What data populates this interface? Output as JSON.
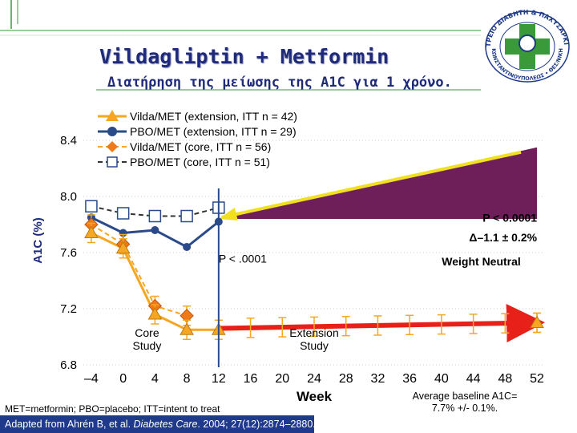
{
  "slide": {
    "title": "Vildagliptin + Metformin",
    "subtitle": "Διατήρηση της μείωσης της A1C για 1 χρόνο.",
    "footnote": "MET=metformin; PBO=placebo; ITT=intent to treat",
    "citation_prefix": "Adapted from Ahrén B, et al. ",
    "citation_journal": "Diabetes Care",
    "citation_suffix": ". 2004; 27(12):2874–2880.",
    "baseline_line1": "Average baseline A1C=",
    "baseline_line2": "7.7% +/- 0.1%.",
    "logo_text_top": "ΙΑΤΡΕΙΟ ΔΙΑΒΗΤΗ & ΠΑΧΥΣΑΡΚΙΑΣ",
    "logo_text_bottom": "ΚΩΝΣΤΑΝΤΙΝΟΥΠΟΛΕΩΣ • ΘΕΣ/ΝΙΚΗ",
    "colors": {
      "title": "#1f2a7a",
      "accent_green": "#3a9a3a",
      "citation_bg": "#1f3a8a"
    }
  },
  "chart_data": {
    "type": "line",
    "title": "",
    "xlabel": "Week",
    "ylabel": "A1C (%)",
    "xlim": [
      -5,
      53
    ],
    "ylim": [
      6.8,
      8.6
    ],
    "x_ticks": [
      -4,
      0,
      4,
      8,
      12,
      16,
      20,
      24,
      28,
      32,
      36,
      40,
      44,
      48,
      52
    ],
    "x_tick_labels": [
      "–4",
      "0",
      "4",
      "8",
      "12",
      "16",
      "20",
      "24",
      "28",
      "32",
      "36",
      "40",
      "44",
      "48",
      "52"
    ],
    "y_ticks": [
      6.8,
      7.2,
      7.6,
      8.0,
      8.4
    ],
    "y_tick_labels": [
      "6.8",
      "7.2",
      "7.6",
      "8.0",
      "8.4"
    ],
    "divider_week": 12,
    "series": [
      {
        "name": "Vilda/MET (extension, ITT n = 42)",
        "marker": "triangle",
        "color": "#f5a623",
        "line_color": "#f5a623",
        "dashed": false,
        "x": [
          -4,
          0,
          4,
          8,
          12,
          52
        ],
        "y": [
          7.74,
          7.63,
          7.16,
          7.05,
          7.05,
          7.1
        ]
      },
      {
        "name": "PBO/MET (extension, ITT n = 29)",
        "marker": "circle",
        "color": "#2a4a8a",
        "line_color": "#2a4a8a",
        "dashed": false,
        "x": [
          -4,
          0,
          4,
          8,
          12
        ],
        "y": [
          7.85,
          7.74,
          7.76,
          7.64,
          7.82
        ]
      },
      {
        "name": "Vilda/MET (core, ITT n = 56)",
        "marker": "diamond",
        "color": "#f07a1a",
        "line_color": "#f5a623",
        "dashed": true,
        "x": [
          -4,
          0,
          4,
          8
        ],
        "y": [
          7.8,
          7.66,
          7.22,
          7.15
        ]
      },
      {
        "name": "PBO/MET (core, ITT n = 51)",
        "marker": "square",
        "color": "#ffffff",
        "line_color": "#333333",
        "dashed": true,
        "x": [
          -4,
          0,
          4,
          8,
          12
        ],
        "y": [
          7.93,
          7.88,
          7.86,
          7.86,
          7.92
        ]
      }
    ],
    "extension_line": {
      "from": [
        12,
        7.06
      ],
      "to": [
        52,
        7.1
      ],
      "color": "#e8201a"
    },
    "difference_wedge": {
      "from": [
        12,
        7.84
      ],
      "to_top": [
        52,
        8.35
      ],
      "to_bottom": [
        52,
        7.84
      ],
      "color": "#6e1f5a"
    },
    "annotations": [
      {
        "text": "P < .0001",
        "x": 12,
        "y": 7.53
      },
      {
        "text": "P < 0.0001",
        "x": 52,
        "y": 7.82,
        "anchor": "end",
        "bold": true
      },
      {
        "text": "Δ–1.1 ± 0.2%",
        "x": 52,
        "y": 7.68,
        "anchor": "end",
        "bold": true
      },
      {
        "text": "Weight Neutral",
        "x": 45,
        "y": 7.51,
        "anchor": "middle",
        "bold": true
      },
      {
        "text": "Core",
        "x": 3,
        "y": 7.0,
        "anchor": "middle"
      },
      {
        "text": "Study",
        "x": 3,
        "y": 6.91,
        "anchor": "middle"
      },
      {
        "text": "Extension",
        "x": 24,
        "y": 7.0,
        "anchor": "middle"
      },
      {
        "text": "Study",
        "x": 24,
        "y": 6.91,
        "anchor": "middle"
      }
    ]
  }
}
